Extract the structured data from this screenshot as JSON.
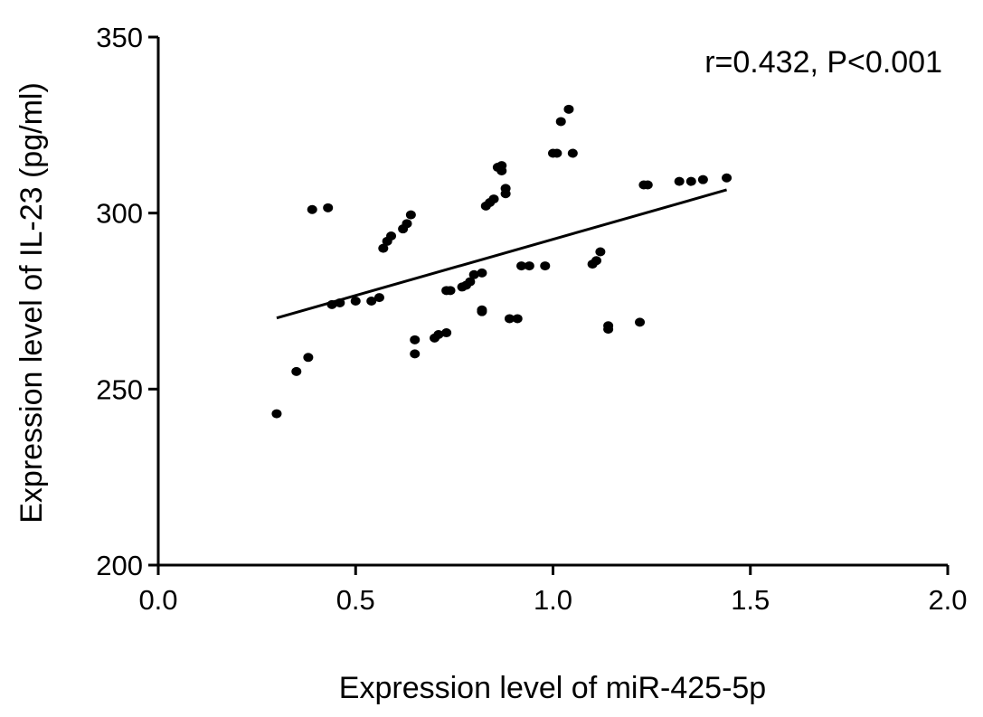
{
  "chart_data": {
    "type": "scatter",
    "title": "",
    "xlabel": "Expression level of miR-425-5p",
    "ylabel": "Expression level of IL-23 (pg/ml)",
    "xlim": [
      0.0,
      2.0
    ],
    "ylim": [
      200,
      350
    ],
    "x_ticks": [
      "0.0",
      "0.5",
      "1.0",
      "1.5",
      "2.0"
    ],
    "y_ticks": [
      "200",
      "250",
      "300",
      "350"
    ],
    "grid": false,
    "annotation": "r=0.432, P<0.001",
    "colors": {
      "points": "#000000",
      "axes": "#000000",
      "fit_line": "#000000"
    },
    "fit_line": {
      "x": [
        0.3,
        1.44
      ],
      "y": [
        270.2,
        306.6
      ]
    },
    "series": [
      {
        "points": [
          {
            "x": 0.3,
            "y": 243
          },
          {
            "x": 0.35,
            "y": 255
          },
          {
            "x": 0.38,
            "y": 259
          },
          {
            "x": 0.39,
            "y": 301
          },
          {
            "x": 0.43,
            "y": 301.5
          },
          {
            "x": 0.44,
            "y": 274
          },
          {
            "x": 0.46,
            "y": 274.5
          },
          {
            "x": 0.5,
            "y": 275
          },
          {
            "x": 0.54,
            "y": 275
          },
          {
            "x": 0.56,
            "y": 276
          },
          {
            "x": 0.57,
            "y": 290
          },
          {
            "x": 0.58,
            "y": 292
          },
          {
            "x": 0.59,
            "y": 293.5
          },
          {
            "x": 0.62,
            "y": 295.5
          },
          {
            "x": 0.63,
            "y": 297
          },
          {
            "x": 0.64,
            "y": 299.5
          },
          {
            "x": 0.65,
            "y": 260
          },
          {
            "x": 0.65,
            "y": 264
          },
          {
            "x": 0.7,
            "y": 264.5
          },
          {
            "x": 0.71,
            "y": 265.5
          },
          {
            "x": 0.73,
            "y": 266
          },
          {
            "x": 0.73,
            "y": 278
          },
          {
            "x": 0.74,
            "y": 278
          },
          {
            "x": 0.77,
            "y": 279
          },
          {
            "x": 0.78,
            "y": 279.5
          },
          {
            "x": 0.79,
            "y": 280.5
          },
          {
            "x": 0.8,
            "y": 282.5
          },
          {
            "x": 0.82,
            "y": 283
          },
          {
            "x": 0.82,
            "y": 272
          },
          {
            "x": 0.82,
            "y": 272.5
          },
          {
            "x": 0.83,
            "y": 302
          },
          {
            "x": 0.84,
            "y": 303
          },
          {
            "x": 0.85,
            "y": 304
          },
          {
            "x": 0.86,
            "y": 313
          },
          {
            "x": 0.87,
            "y": 312
          },
          {
            "x": 0.87,
            "y": 313.5
          },
          {
            "x": 0.88,
            "y": 305.5
          },
          {
            "x": 0.88,
            "y": 307
          },
          {
            "x": 0.89,
            "y": 270
          },
          {
            "x": 0.91,
            "y": 270
          },
          {
            "x": 0.92,
            "y": 285
          },
          {
            "x": 0.94,
            "y": 285
          },
          {
            "x": 0.98,
            "y": 285
          },
          {
            "x": 1.0,
            "y": 317
          },
          {
            "x": 1.01,
            "y": 317
          },
          {
            "x": 1.02,
            "y": 326
          },
          {
            "x": 1.04,
            "y": 329.5
          },
          {
            "x": 1.05,
            "y": 317
          },
          {
            "x": 1.1,
            "y": 285.5
          },
          {
            "x": 1.11,
            "y": 286.5
          },
          {
            "x": 1.12,
            "y": 289
          },
          {
            "x": 1.14,
            "y": 267
          },
          {
            "x": 1.14,
            "y": 268
          },
          {
            "x": 1.22,
            "y": 269
          },
          {
            "x": 1.23,
            "y": 308
          },
          {
            "x": 1.24,
            "y": 308
          },
          {
            "x": 1.32,
            "y": 309
          },
          {
            "x": 1.35,
            "y": 309
          },
          {
            "x": 1.38,
            "y": 309.5
          },
          {
            "x": 1.44,
            "y": 310
          }
        ]
      }
    ]
  }
}
